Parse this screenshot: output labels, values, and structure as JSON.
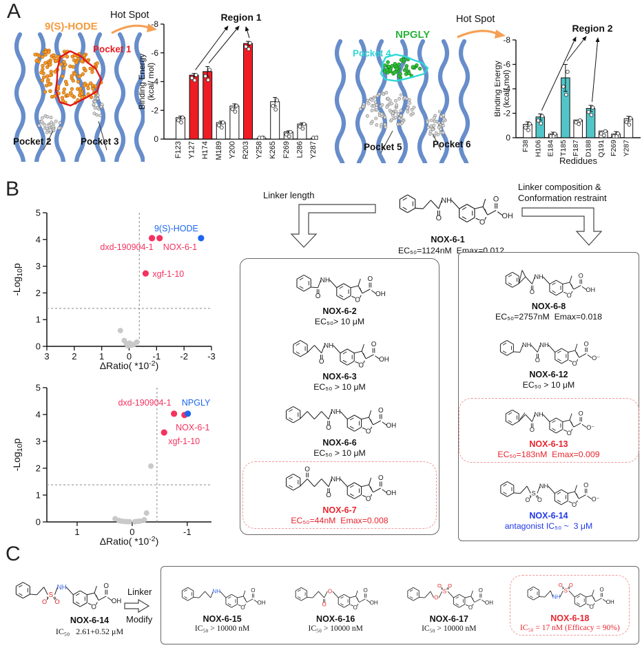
{
  "figure": {
    "panels": [
      "A",
      "B",
      "C"
    ]
  },
  "panelA": {
    "left": {
      "ligand_label": "9(S)-HODE",
      "pocket1": "Pocket 1",
      "pocket2": "Pocket 2",
      "pocket3": "Pocket 3",
      "hotspot_label": "Hot Spot"
    },
    "right": {
      "ligand_label": "NPGLY",
      "pocket4": "Pocket 4",
      "pocket5": "Pocket 5",
      "pocket6": "Pocket 6",
      "hotspot_label": "Hot Spot"
    }
  },
  "chart_data": [
    {
      "id": "region1-bars",
      "type": "bar",
      "title": "Region 1",
      "categories": [
        "F123",
        "Y127",
        "H174",
        "M189",
        "Y200",
        "R203",
        "Y258",
        "K265",
        "F269",
        "L286",
        "Y287"
      ],
      "values": [
        -1.5,
        -4.45,
        -4.7,
        -1.15,
        -2.3,
        -6.65,
        -0.05,
        -2.6,
        -0.5,
        -1.05,
        -0.05
      ],
      "errors": [
        0.1,
        0.12,
        0.35,
        0.1,
        0.15,
        0.15,
        0.03,
        0.3,
        0.08,
        0.08,
        0.03
      ],
      "highlight": [
        false,
        true,
        true,
        false,
        false,
        true,
        false,
        false,
        false,
        false,
        false
      ],
      "highlight_color": "#ee1c25",
      "bar_color": "#ffffff",
      "ylabel_lines": [
        "Binding Energy",
        "(kcal/ mol)"
      ],
      "xlabel": "",
      "ylim": [
        0,
        -8
      ],
      "yticks": [
        0,
        -2,
        -4,
        -6,
        -8
      ],
      "annotated_bars": [
        "Y127",
        "H174",
        "R203"
      ]
    },
    {
      "id": "region2-bars",
      "type": "bar",
      "title": "Region 2",
      "categories": [
        "F38",
        "H106",
        "E184",
        "T185",
        "F187",
        "D188",
        "Q191",
        "F269",
        "Y287"
      ],
      "values": [
        -1.1,
        -1.7,
        -0.3,
        -4.9,
        -1.45,
        -2.4,
        -0.55,
        -0.3,
        -1.55
      ],
      "errors": [
        0.2,
        0.25,
        0.15,
        1.1,
        0.05,
        0.25,
        0.08,
        0.2,
        0.2
      ],
      "highlight": [
        false,
        true,
        false,
        true,
        false,
        true,
        false,
        false,
        false
      ],
      "highlight_color": "#52c5c9",
      "bar_color": "#ffffff",
      "ylabel_lines": [
        "Binding Energy",
        "(kcal/ mol)"
      ],
      "xlabel": "Redidues",
      "ylim": [
        0,
        -8
      ],
      "yticks": [
        0,
        -2,
        -4,
        -6,
        -8
      ],
      "annotated_bars": [
        "H106",
        "T185",
        "D188"
      ]
    },
    {
      "id": "volcano-1",
      "type": "scatter",
      "xlabel_parts": [
        {
          "t": "ΔRatio( *10"
        },
        {
          "t": "-2",
          "sup": true
        },
        {
          "t": ")"
        }
      ],
      "ylabel_parts": [
        {
          "t": "-Log"
        },
        {
          "t": "10",
          "sub": true
        },
        {
          "t": "p"
        }
      ],
      "xlim": [
        3,
        -3
      ],
      "ylim": [
        0,
        5
      ],
      "xticks": [
        3,
        2,
        1,
        0,
        -1,
        -2,
        -3
      ],
      "yticks": [
        0,
        1,
        2,
        3,
        4,
        5
      ],
      "vline": -0.37,
      "hline": 1.42,
      "points": [
        {
          "x": 0.32,
          "y": 0.59
        },
        {
          "x": 0.18,
          "y": 0.22
        },
        {
          "x": 0.1,
          "y": 0.1
        },
        {
          "x": 0.02,
          "y": 0.05
        },
        {
          "x": -0.08,
          "y": 0.04
        },
        {
          "x": -0.18,
          "y": 0.08
        },
        {
          "x": -0.28,
          "y": 0.16
        },
        {
          "x": 0.05,
          "y": 0.02
        },
        {
          "x": -0.02,
          "y": 0.12
        },
        {
          "label": "dxd-190904-1",
          "x": -0.83,
          "y": 4.05,
          "color": "#f4325f"
        },
        {
          "label": "NOX-6-1",
          "x": -1.11,
          "y": 4.05,
          "color": "#f4325f"
        },
        {
          "label": "xgf-1-10",
          "x": -0.6,
          "y": 2.73,
          "color": "#f4325f"
        },
        {
          "label": "9(S)-HODE",
          "x": -2.62,
          "y": 4.05,
          "color": "#1b66f0"
        }
      ]
    },
    {
      "id": "volcano-2",
      "type": "scatter",
      "xlabel_parts": [
        {
          "t": "ΔRatio( *10"
        },
        {
          "t": "-2",
          "sup": true
        },
        {
          "t": ")"
        }
      ],
      "ylabel_parts": [
        {
          "t": "-Log"
        },
        {
          "t": "10",
          "sub": true
        },
        {
          "t": "p"
        }
      ],
      "xlim": [
        1.55,
        -1.44
      ],
      "ylim": [
        0,
        5
      ],
      "xticks": [
        1,
        0,
        -1
      ],
      "yticks": [
        0,
        1,
        2,
        3,
        4,
        5
      ],
      "vline": -0.45,
      "hline": 1.38,
      "points": [
        {
          "x": -0.34,
          "y": 2.08
        },
        {
          "x": -0.26,
          "y": 0.33
        },
        {
          "x": 0.31,
          "y": 0.12
        },
        {
          "x": 0.24,
          "y": 0.05
        },
        {
          "x": 0.15,
          "y": 0.02
        },
        {
          "x": 0.05,
          "y": 0.01
        },
        {
          "x": -0.05,
          "y": 0.01
        },
        {
          "x": -0.14,
          "y": 0.03
        },
        {
          "x": -0.22,
          "y": 0.08
        },
        {
          "x": 0.1,
          "y": 0.01
        },
        {
          "x": -0.1,
          "y": 0.02
        },
        {
          "x": 0.2,
          "y": 0.03
        },
        {
          "label": "dxd-190904-1",
          "x": -0.76,
          "y": 4.03,
          "color": "#f4325f"
        },
        {
          "label": "NOX-6-1",
          "x": -0.95,
          "y": 3.98,
          "color": "#f4325f"
        },
        {
          "label": "xgf-1-10",
          "x": -0.58,
          "y": 3.33,
          "color": "#f4325f"
        },
        {
          "label": "NPGLY",
          "x": -1.01,
          "y": 4.03,
          "color": "#1b66f0"
        }
      ]
    }
  ],
  "panelB": {
    "arrow_left_label": "Linker length",
    "arrow_right_label": "Linker composition &\nConformation restraint",
    "parent": {
      "name": "NOX-6-1",
      "potency": "EC₅₀=1124nM  Emax=0.012",
      "chain": [
        "b",
        "b",
        "CO",
        "N"
      ],
      "acid": "OH",
      "start_down": true
    },
    "left_box": [
      {
        "name": "NOX-6-2",
        "potency": "EC₅₀> 10 μM",
        "chain": [
          "CO",
          "N"
        ],
        "acid": "OH",
        "start_down": true
      },
      {
        "name": "NOX-6-3",
        "potency": "EC₅₀ > 10 μM",
        "chain": [
          "b",
          "CO",
          "N"
        ],
        "acid": "OH"
      },
      {
        "name": "NOX-6-6",
        "potency": "EC₅₀ > 10 μM",
        "chain": [
          "b",
          "b",
          "b",
          "CO",
          "N"
        ],
        "acid": "OH"
      },
      {
        "name": "NOX-6-7",
        "potency": "EC₅₀=44nM  Emax=0.008",
        "chain": [
          "COup",
          "b",
          "b",
          "CO",
          "N"
        ],
        "acid": "OH",
        "highlight": true,
        "name_color": "red",
        "pot_color": "red"
      }
    ],
    "right_box": [
      {
        "name": "NOX-6-8",
        "potency": "EC₅₀=2757nM  Emax=0.018",
        "chain": [
          "cp",
          "CO",
          "N"
        ],
        "acid": "OH"
      },
      {
        "name": "NOX-6-12",
        "potency": "EC₅₀ > 10 μM",
        "chain": [
          "b",
          "N",
          "CO",
          "N"
        ],
        "acid": "O⁻",
        "start_down": true
      },
      {
        "name": "NOX-6-13",
        "potency": "EC₅₀=183nM  Emax=0.009",
        "chain": [
          "dbl",
          "CO",
          "N"
        ],
        "acid": "O⁻",
        "highlight": true,
        "name_color": "red",
        "pot_color": "red"
      },
      {
        "name": "NOX-6-14",
        "potency": "antagonist IC₅₀ ~  3 μM",
        "chain": [
          "b",
          "b",
          "S",
          "N"
        ],
        "acid": "O⁻",
        "start_down": true,
        "so2_below": true,
        "name_color": "blue",
        "pot_color": "blue"
      }
    ]
  },
  "panelC": {
    "lead": {
      "name": "NOX-6-14",
      "potency": "IC₅₀   2.61+0.52 μM",
      "chain": [
        "b",
        "b",
        "S",
        "N"
      ],
      "acid": "OH",
      "start_down": true,
      "so2_below": true,
      "colored": true
    },
    "arrow_label_top": "Linker",
    "arrow_label_bottom": "Modify",
    "box": [
      {
        "name": "NOX-6-15",
        "potency": "IC₅₀ > 10000 nM",
        "chain": [
          "b",
          "b",
          "b",
          "N"
        ],
        "acid": "OH",
        "start_down": true,
        "colored": true
      },
      {
        "name": "NOX-6-16",
        "potency": "IC₅₀ > 10000 nM",
        "chain": [
          "b",
          "b",
          "CO",
          "O"
        ],
        "acid": "OH",
        "start_down": true,
        "colored": true
      },
      {
        "name": "NOX-6-17",
        "potency": "IC₅₀ > 10000 nM",
        "chain": [
          "b",
          "b",
          "O",
          "S"
        ],
        "acid": "OH",
        "start_down": true,
        "colored": true
      },
      {
        "name": "NOX-6-18",
        "potency": "IC₅₀ = 17 nM (Efficacy = 90%)",
        "chain": [
          "b",
          "b",
          "N",
          "S"
        ],
        "acid": "OH",
        "start_down": true,
        "colored": true,
        "highlight": true,
        "name_color": "red",
        "pot_color": "red"
      }
    ]
  },
  "colors": {
    "bar_red": "#ee1c25",
    "bar_cyan": "#52c5c9",
    "scatter_red": "#f4325f",
    "scatter_blue": "#1b66f0",
    "orange": "#f59a3d",
    "green": "#28b43c",
    "cyan": "#30d5d5",
    "pocket_red": "#e81c24",
    "ribbon": "#5f87c7"
  }
}
